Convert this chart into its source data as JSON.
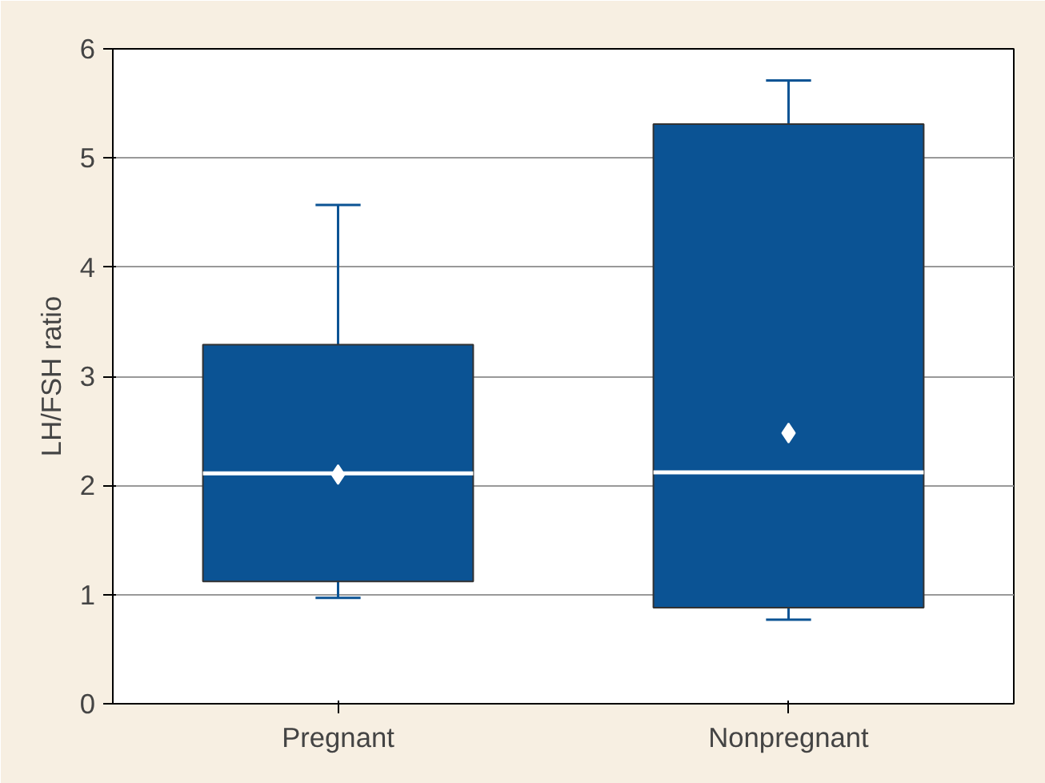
{
  "chart_data": {
    "type": "box",
    "ylabel": "LH/FSH ratio",
    "categories": [
      "Pregnant",
      "Nonpregnant"
    ],
    "series": [
      {
        "color": "#0b5394",
        "boxes": [
          {
            "low": 0.97,
            "q1": 1.12,
            "median": 2.11,
            "q3": 3.29,
            "high": 4.57,
            "mean": 2.1
          },
          {
            "low": 0.77,
            "q1": 0.88,
            "median": 2.12,
            "q3": 5.31,
            "high": 5.71,
            "mean": 2.48
          }
        ]
      }
    ],
    "ylim": [
      0,
      6
    ],
    "yticks": [
      0,
      1,
      2,
      3,
      4,
      5,
      6
    ],
    "grid": "y"
  }
}
